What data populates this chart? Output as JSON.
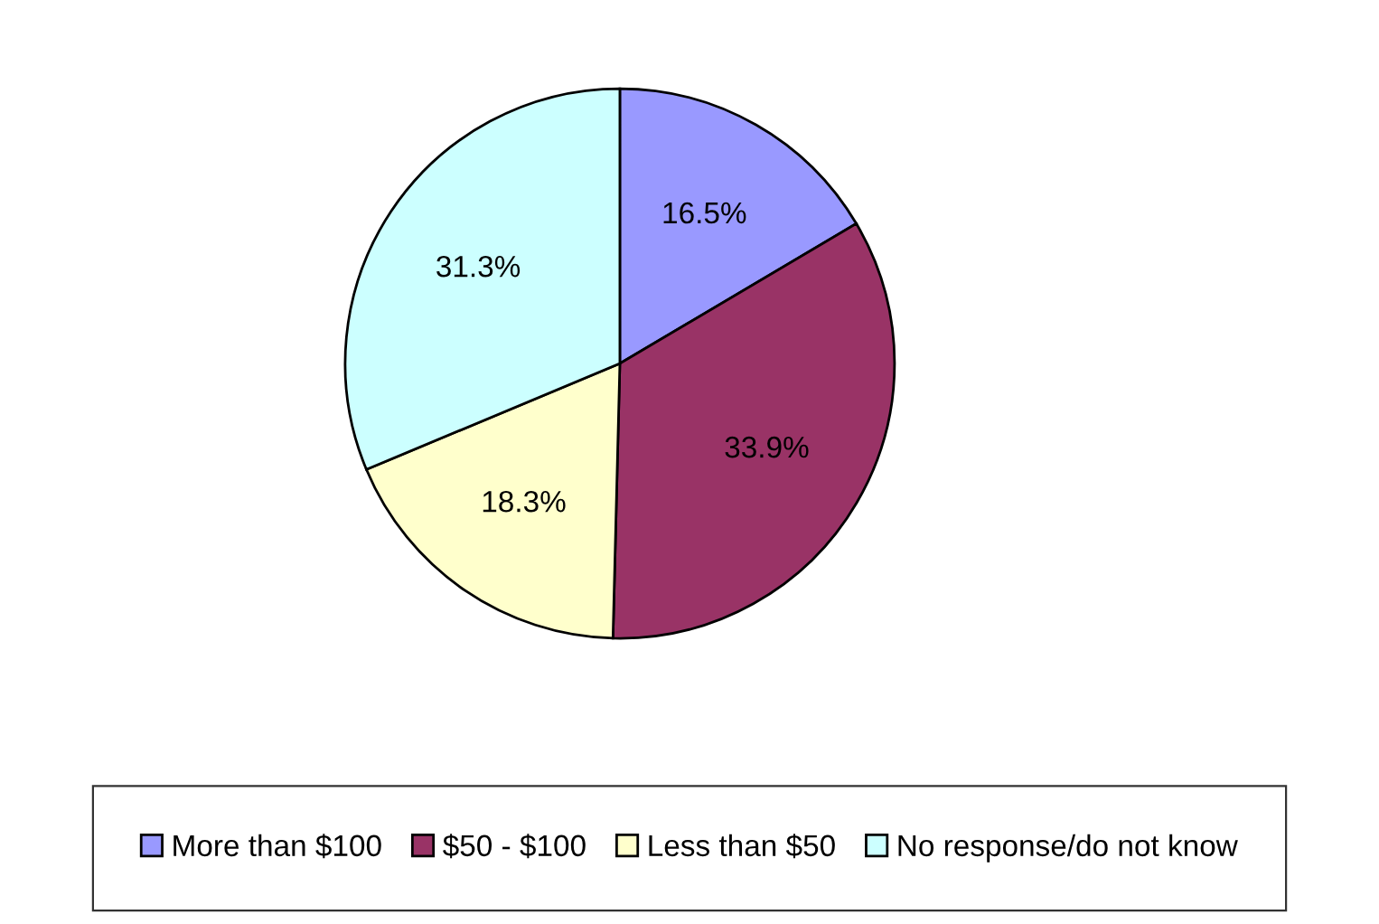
{
  "chart_data": {
    "type": "pie",
    "categories": [
      "More than $100",
      "$50 - $100",
      "Less than $50",
      "No response/do not know"
    ],
    "values": [
      16.5,
      33.9,
      18.3,
      31.3
    ],
    "colors": [
      "#9999ff",
      "#993366",
      "#ffffcc",
      "#ccffff"
    ],
    "value_labels": [
      "16.5%",
      "33.9%",
      "18.3%",
      "31.3%"
    ],
    "legend": "bottom"
  }
}
